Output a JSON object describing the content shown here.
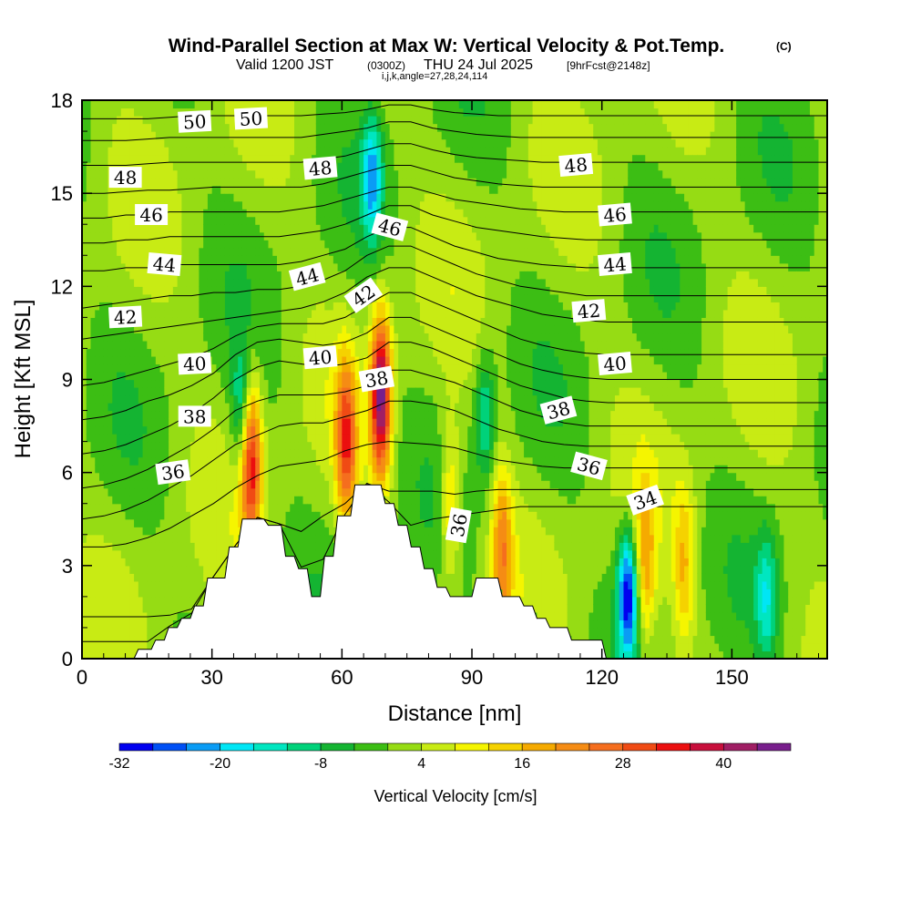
{
  "header": {
    "title": "Wind-Parallel Section at Max W: Vertical Velocity & Pot.Temp.",
    "copyright": "(C)",
    "valid_prefix": "Valid 1200 JST",
    "valid_utc": "(0300Z)",
    "valid_date": "THU 24 Jul 2025",
    "forecast_info": "[9hrFcst@2148z]",
    "ijk_line": "i,j,k,angle=27,28,24,114"
  },
  "chart_data": {
    "type": "heatmap",
    "title": "Wind-Parallel Section at Max W: Vertical Velocity & Pot.Temp.",
    "xlabel": "Distance [nm]",
    "ylabel": "Height [Kft MSL]",
    "xlim": [
      0,
      172
    ],
    "ylim": [
      0,
      18
    ],
    "x_ticks": [
      0,
      30,
      60,
      90,
      120,
      150
    ],
    "y_ticks": [
      0,
      3,
      6,
      9,
      12,
      15,
      18
    ],
    "grid": false,
    "colorbar": {
      "title": "Vertical Velocity [cm/s]",
      "placement": "bottom",
      "tick_values": [
        -32,
        -20,
        -8,
        4,
        16,
        28,
        40
      ],
      "tick_labels": [
        "-32",
        "-20",
        "-8",
        "4",
        "16",
        "28",
        "40"
      ],
      "levels": [
        -32,
        -28,
        -24,
        -20,
        -16,
        -12,
        -8,
        -4,
        0,
        4,
        8,
        12,
        16,
        20,
        24,
        28,
        32,
        36,
        40,
        44,
        48
      ],
      "colors": [
        "#0000f0",
        "#0050f5",
        "#0a9cf5",
        "#00e6f5",
        "#00e6c0",
        "#00d27a",
        "#14b432",
        "#3cbe14",
        "#96dc14",
        "#c8eb14",
        "#f5f500",
        "#f5d200",
        "#f5aa00",
        "#f58c14",
        "#f56e1e",
        "#f04b14",
        "#eb0f0f",
        "#c80f3c",
        "#a01e64",
        "#781e8c"
      ]
    },
    "terrain": {
      "distance_nm": [
        0,
        12,
        13,
        16,
        17,
        19,
        20,
        22,
        23,
        25,
        26,
        28,
        29,
        33,
        34,
        36,
        37,
        42,
        43,
        46,
        47,
        49,
        50,
        52,
        53,
        55,
        56,
        58,
        59,
        62,
        63,
        69,
        70,
        72,
        73,
        75,
        76,
        78,
        79,
        81,
        82,
        84,
        85,
        90,
        91,
        96,
        97,
        101,
        102,
        104,
        105,
        107,
        108,
        112,
        113,
        120,
        121,
        172
      ],
      "height_kft": [
        0,
        0,
        0.3,
        0.3,
        0.6,
        0.6,
        1,
        1,
        1.3,
        1.3,
        1.7,
        1.7,
        2.6,
        2.6,
        3.6,
        3.6,
        4.5,
        4.5,
        4.3,
        4.3,
        3.3,
        3.3,
        2.9,
        2.9,
        2,
        2,
        3.3,
        3.3,
        4.6,
        4.6,
        5.6,
        5.6,
        5,
        5,
        4.3,
        4.3,
        3.6,
        3.6,
        2.9,
        2.9,
        2.3,
        2.3,
        2,
        2,
        2.6,
        2.6,
        2,
        2,
        1.7,
        1.7,
        1.3,
        1.3,
        1,
        1,
        0.6,
        0.6,
        0,
        0
      ]
    },
    "vertical_velocity_features": [
      {
        "kind": "updraft",
        "x_nm": 39,
        "height_kft": 6.5,
        "peak_cm_s": 34
      },
      {
        "kind": "updraft",
        "x_nm": 61,
        "height_kft": 7,
        "peak_cm_s": 28
      },
      {
        "kind": "updraft",
        "x_nm": 69,
        "height_kft": 8.5,
        "peak_cm_s": 44
      },
      {
        "kind": "updraft",
        "x_nm": 85,
        "height_kft": 5,
        "peak_cm_s": 14
      },
      {
        "kind": "updraft",
        "x_nm": 97,
        "height_kft": 3.5,
        "peak_cm_s": 20
      },
      {
        "kind": "updraft",
        "x_nm": 130,
        "height_kft": 3,
        "peak_cm_s": 16
      },
      {
        "kind": "updraft",
        "x_nm": 139,
        "height_kft": 3,
        "peak_cm_s": 14
      },
      {
        "kind": "downdraft",
        "x_nm": 67,
        "height_kft": 15.5,
        "peak_cm_s": -20
      },
      {
        "kind": "downdraft",
        "x_nm": 37,
        "height_kft": 8,
        "peak_cm_s": -16
      },
      {
        "kind": "downdraft",
        "x_nm": 93,
        "height_kft": 7.8,
        "peak_cm_s": -14
      },
      {
        "kind": "downdraft",
        "x_nm": 126,
        "height_kft": 2.1,
        "peak_cm_s": -32
      },
      {
        "kind": "downdraft",
        "x_nm": 158,
        "height_kft": 2,
        "peak_cm_s": -14
      }
    ],
    "theta_contours": [
      {
        "level": 34,
        "y_kft": [
          0.55,
          0.55,
          0.55,
          0.55,
          0.55,
          0.7,
          0.9,
          1.2,
          1.6,
          2.1,
          2.6,
          3.2,
          3.7,
          4.0,
          4.1,
          4.3,
          4.5,
          4.6,
          4.7,
          4.8,
          4.9,
          4.9,
          4.9,
          4.9,
          4.9,
          4.9,
          4.9,
          4.9,
          4.9,
          4.9,
          4.9,
          4.9,
          4.9,
          4.9,
          4.9
        ]
      },
      {
        "level": 35,
        "y_kft": [
          1.35,
          1.35,
          1.35,
          1.35,
          1.4,
          1.6,
          2.0,
          2.5,
          3.0,
          3.6,
          4.1,
          4.6,
          5.0,
          5.3,
          5.4,
          5.4,
          5.4,
          5.3,
          5.4,
          5.45,
          5.45,
          5.45,
          5.45,
          5.45,
          5.45,
          5.45,
          5.45,
          5.45,
          5.45,
          5.45,
          5.45,
          5.45,
          5.45,
          5.45,
          5.45
        ]
      },
      {
        "level": 36,
        "y_kft": [
          3.6,
          3.6,
          3.7,
          3.9,
          4.2,
          4.6,
          5.0,
          5.5,
          5.9,
          6.2,
          6.3,
          6.4,
          6.7,
          6.9,
          7.0,
          6.95,
          6.9,
          6.8,
          6.6,
          6.4,
          6.3,
          6.2,
          6.15,
          6.15,
          6.15,
          6.15,
          6.15,
          6.15,
          6.15,
          6.15,
          6.15,
          6.15,
          6.15,
          6.15,
          6.15
        ]
      },
      {
        "level": 37,
        "y_kft": [
          4.5,
          4.6,
          4.8,
          5.1,
          5.5,
          5.9,
          6.4,
          6.9,
          7.2,
          7.5,
          7.6,
          7.6,
          7.8,
          8.0,
          8.3,
          8.3,
          8.2,
          8.0,
          7.7,
          7.4,
          7.2,
          7.0,
          6.9,
          6.85,
          6.85,
          6.85,
          6.85,
          6.85,
          6.85,
          6.85,
          6.85,
          6.85,
          6.85,
          6.85,
          6.85
        ]
      },
      {
        "level": 38,
        "y_kft": [
          5.5,
          5.6,
          5.8,
          6.1,
          6.5,
          6.9,
          7.4,
          8.0,
          8.3,
          8.5,
          8.5,
          8.5,
          8.6,
          8.8,
          9.3,
          9.3,
          9.1,
          8.9,
          8.6,
          8.3,
          8.0,
          7.8,
          7.6,
          7.5,
          7.5,
          7.5,
          7.5,
          7.5,
          7.5,
          7.5,
          7.5,
          7.5,
          7.5,
          7.5,
          7.5
        ]
      },
      {
        "level": 39,
        "y_kft": [
          6.6,
          6.7,
          6.9,
          7.2,
          7.5,
          7.9,
          8.4,
          9.0,
          9.4,
          9.6,
          9.5,
          9.4,
          9.5,
          9.7,
          10.2,
          10.2,
          10.0,
          9.7,
          9.4,
          9.1,
          8.8,
          8.6,
          8.4,
          8.3,
          8.25,
          8.25,
          8.25,
          8.25,
          8.25,
          8.25,
          8.25,
          8.25,
          8.25,
          8.25,
          8.25
        ]
      },
      {
        "level": 40,
        "y_kft": [
          7.7,
          7.8,
          8.0,
          8.3,
          8.5,
          8.8,
          9.2,
          9.8,
          10.2,
          10.3,
          10.2,
          10.1,
          10.2,
          10.5,
          11.0,
          11.0,
          10.7,
          10.4,
          10.1,
          9.8,
          9.5,
          9.3,
          9.15,
          9.05,
          9.0,
          9.0,
          9.0,
          9.0,
          9.0,
          9.0,
          9.0,
          9.0,
          9.0,
          9.0,
          9.0
        ]
      },
      {
        "level": 41,
        "y_kft": [
          8.8,
          8.9,
          9.1,
          9.3,
          9.5,
          9.7,
          10.0,
          10.4,
          10.7,
          10.8,
          10.8,
          10.8,
          11.0,
          11.4,
          11.8,
          11.8,
          11.5,
          11.2,
          10.9,
          10.6,
          10.3,
          10.1,
          9.95,
          9.85,
          9.8,
          9.8,
          9.8,
          9.8,
          9.8,
          9.8,
          9.8,
          9.8,
          9.8,
          9.8,
          9.8
        ]
      },
      {
        "level": 42,
        "y_kft": [
          10.3,
          10.4,
          10.5,
          10.6,
          10.7,
          10.8,
          10.9,
          11.0,
          11.1,
          11.2,
          11.3,
          11.5,
          11.8,
          12.3,
          12.6,
          12.6,
          12.3,
          12.0,
          11.7,
          11.5,
          11.3,
          11.1,
          11.0,
          10.9,
          10.85,
          10.85,
          10.85,
          10.85,
          10.85,
          10.85,
          10.85,
          10.85,
          10.85,
          10.85,
          10.85
        ]
      },
      {
        "level": 43,
        "y_kft": [
          11.3,
          11.4,
          11.5,
          11.6,
          11.7,
          11.7,
          11.8,
          11.8,
          11.9,
          11.9,
          12.0,
          12.2,
          12.5,
          13.0,
          13.3,
          13.3,
          13.0,
          12.7,
          12.4,
          12.2,
          12.0,
          11.9,
          11.8,
          11.7,
          11.7,
          11.7,
          11.7,
          11.7,
          11.7,
          11.7,
          11.7,
          11.7,
          11.7,
          11.7,
          11.7
        ]
      },
      {
        "level": 44,
        "y_kft": [
          12.5,
          12.5,
          12.6,
          12.6,
          12.7,
          12.7,
          12.7,
          12.7,
          12.7,
          12.7,
          12.8,
          13.0,
          13.2,
          13.6,
          13.9,
          13.9,
          13.6,
          13.3,
          13.1,
          12.9,
          12.8,
          12.7,
          12.65,
          12.6,
          12.6,
          12.6,
          12.6,
          12.6,
          12.6,
          12.6,
          12.6,
          12.6,
          12.6,
          12.6,
          12.6
        ]
      },
      {
        "level": 45,
        "y_kft": [
          13.4,
          13.4,
          13.5,
          13.5,
          13.6,
          13.6,
          13.6,
          13.6,
          13.6,
          13.6,
          13.7,
          13.8,
          14.0,
          14.3,
          14.6,
          14.6,
          14.3,
          14.1,
          13.9,
          13.8,
          13.7,
          13.6,
          13.55,
          13.5,
          13.5,
          13.5,
          13.5,
          13.5,
          13.5,
          13.5,
          13.5,
          13.5,
          13.5,
          13.5,
          13.5
        ]
      },
      {
        "level": 46,
        "y_kft": [
          14.2,
          14.2,
          14.3,
          14.3,
          14.4,
          14.4,
          14.4,
          14.4,
          14.4,
          14.4,
          14.5,
          14.6,
          14.8,
          15.0,
          15.2,
          15.2,
          15.0,
          14.8,
          14.7,
          14.6,
          14.5,
          14.45,
          14.4,
          14.4,
          14.4,
          14.4,
          14.4,
          14.4,
          14.4,
          14.4,
          14.4,
          14.4,
          14.4,
          14.4,
          14.4
        ]
      },
      {
        "level": 47,
        "y_kft": [
          15.0,
          15.0,
          15.05,
          15.1,
          15.1,
          15.15,
          15.2,
          15.2,
          15.2,
          15.2,
          15.2,
          15.3,
          15.5,
          15.7,
          15.9,
          15.9,
          15.7,
          15.5,
          15.4,
          15.3,
          15.25,
          15.2,
          15.2,
          15.2,
          15.2,
          15.2,
          15.2,
          15.2,
          15.2,
          15.2,
          15.2,
          15.2,
          15.2,
          15.2,
          15.2
        ]
      },
      {
        "level": 48,
        "y_kft": [
          15.9,
          15.9,
          15.9,
          15.95,
          16.0,
          16.0,
          16.0,
          16.0,
          16.0,
          16.0,
          16.0,
          16.1,
          16.2,
          16.4,
          16.6,
          16.6,
          16.4,
          16.25,
          16.15,
          16.1,
          16.05,
          16.0,
          16.0,
          16.0,
          16.0,
          16.0,
          16.0,
          16.0,
          16.0,
          16.0,
          16.0,
          16.0,
          16.0,
          16.0,
          16.0
        ]
      },
      {
        "level": 49,
        "y_kft": [
          16.7,
          16.7,
          16.7,
          16.75,
          16.8,
          16.8,
          16.8,
          16.8,
          16.8,
          16.8,
          16.8,
          16.9,
          17.0,
          17.1,
          17.3,
          17.3,
          17.1,
          17.0,
          16.9,
          16.85,
          16.8,
          16.8,
          16.8,
          16.8,
          16.8,
          16.8,
          16.8,
          16.8,
          16.8,
          16.8,
          16.8,
          16.8,
          16.8,
          16.8,
          16.8
        ]
      },
      {
        "level": 50,
        "y_kft": [
          17.4,
          17.4,
          17.4,
          17.4,
          17.45,
          17.5,
          17.5,
          17.5,
          17.5,
          17.5,
          17.5,
          17.55,
          17.6,
          17.7,
          17.85,
          17.85,
          17.7,
          17.6,
          17.55,
          17.5,
          17.5,
          17.5,
          17.5,
          17.5,
          17.5,
          17.5,
          17.5,
          17.5,
          17.5,
          17.5,
          17.5,
          17.5,
          17.5,
          17.5,
          17.5
        ]
      }
    ],
    "contour_labels": [
      {
        "text": "50",
        "x_nm": 26,
        "y_kft": 17.3,
        "angle": -3
      },
      {
        "text": "50",
        "x_nm": 39,
        "y_kft": 17.4,
        "angle": -3
      },
      {
        "text": "48",
        "x_nm": 10,
        "y_kft": 15.5,
        "angle": 0
      },
      {
        "text": "48",
        "x_nm": 55,
        "y_kft": 15.8,
        "angle": -5
      },
      {
        "text": "48",
        "x_nm": 114,
        "y_kft": 15.9,
        "angle": -5
      },
      {
        "text": "46",
        "x_nm": 16,
        "y_kft": 14.3,
        "angle": 0
      },
      {
        "text": "46",
        "x_nm": 71,
        "y_kft": 13.9,
        "angle": 15
      },
      {
        "text": "46",
        "x_nm": 123,
        "y_kft": 14.3,
        "angle": -5
      },
      {
        "text": "44",
        "x_nm": 19,
        "y_kft": 12.7,
        "angle": 5
      },
      {
        "text": "44",
        "x_nm": 52,
        "y_kft": 12.3,
        "angle": -15
      },
      {
        "text": "44",
        "x_nm": 123,
        "y_kft": 12.7,
        "angle": -5
      },
      {
        "text": "42",
        "x_nm": 10,
        "y_kft": 11.0,
        "angle": -3
      },
      {
        "text": "42",
        "x_nm": 65,
        "y_kft": 11.7,
        "angle": -35
      },
      {
        "text": "42",
        "x_nm": 117,
        "y_kft": 11.2,
        "angle": -5
      },
      {
        "text": "40",
        "x_nm": 26,
        "y_kft": 9.5,
        "angle": -3
      },
      {
        "text": "40",
        "x_nm": 55,
        "y_kft": 9.7,
        "angle": -5
      },
      {
        "text": "40",
        "x_nm": 123,
        "y_kft": 9.5,
        "angle": -5
      },
      {
        "text": "38",
        "x_nm": 26,
        "y_kft": 7.8,
        "angle": 0
      },
      {
        "text": "38",
        "x_nm": 68,
        "y_kft": 9.0,
        "angle": -10
      },
      {
        "text": "38",
        "x_nm": 110,
        "y_kft": 8.0,
        "angle": -15
      },
      {
        "text": "36",
        "x_nm": 21,
        "y_kft": 6.0,
        "angle": -8
      },
      {
        "text": "36",
        "x_nm": 87,
        "y_kft": 4.3,
        "angle": -80
      },
      {
        "text": "36",
        "x_nm": 117,
        "y_kft": 6.2,
        "angle": 15
      },
      {
        "text": "34",
        "x_nm": 130,
        "y_kft": 5.1,
        "angle": -20
      }
    ]
  }
}
